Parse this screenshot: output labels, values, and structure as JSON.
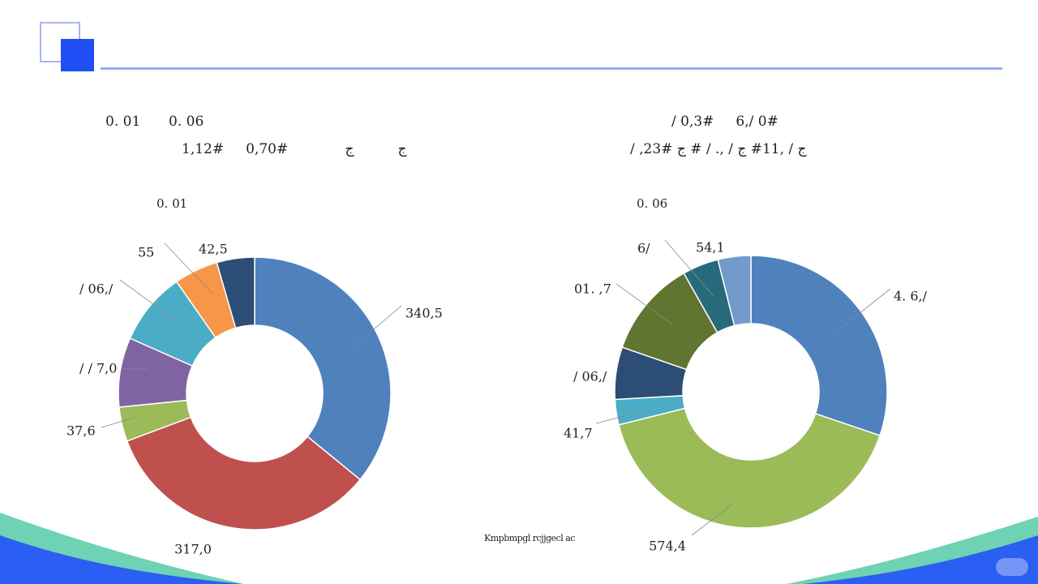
{
  "theme": {
    "accent": "#1f4ff5",
    "rule": "#98aaf0",
    "wave_teal": "#6ed2b4",
    "wave_blue": "#2b5ef2"
  },
  "text": {
    "left_line1_a": "0. 01",
    "left_line1_b": "0. 06",
    "left_line2": "1,12#     0,70#             ج          ج",
    "right_line1": "/ 0,3#     6,/ 0#",
    "right_line2": "/ ,23# ج / ,11# ج / ,. / # ج",
    "footer": "Kmpbmpgl rcjjgecl ac"
  },
  "chart_data": [
    {
      "type": "donut",
      "title": "0. 01",
      "labels": [
        "340,5",
        "317,0",
        "37,6",
        "/ / 7,0",
        "/ 06,/",
        "55",
        "42,5"
      ],
      "values": [
        34.4,
        32.0,
        3.9,
        7.9,
        8.3,
        5.0,
        4.3
      ],
      "colors": [
        "#4f81bd",
        "#c0504d",
        "#9bbb59",
        "#8064a2",
        "#4bacc6",
        "#f79646",
        "#2c4d75"
      ]
    },
    {
      "type": "donut",
      "title": "0. 06",
      "labels": [
        "4. 6,/",
        "574,4",
        "41,7",
        "/ 06,/",
        "01. ,7",
        "6/",
        "54,1"
      ],
      "values": [
        30.2,
        40.9,
        3.0,
        6.2,
        11.5,
        4.3,
        3.9
      ],
      "colors": [
        "#4f81bd",
        "#9bbb59",
        "#4bacc6",
        "#2c4d75",
        "#5f7530",
        "#276a7c",
        "#729aca"
      ]
    }
  ]
}
